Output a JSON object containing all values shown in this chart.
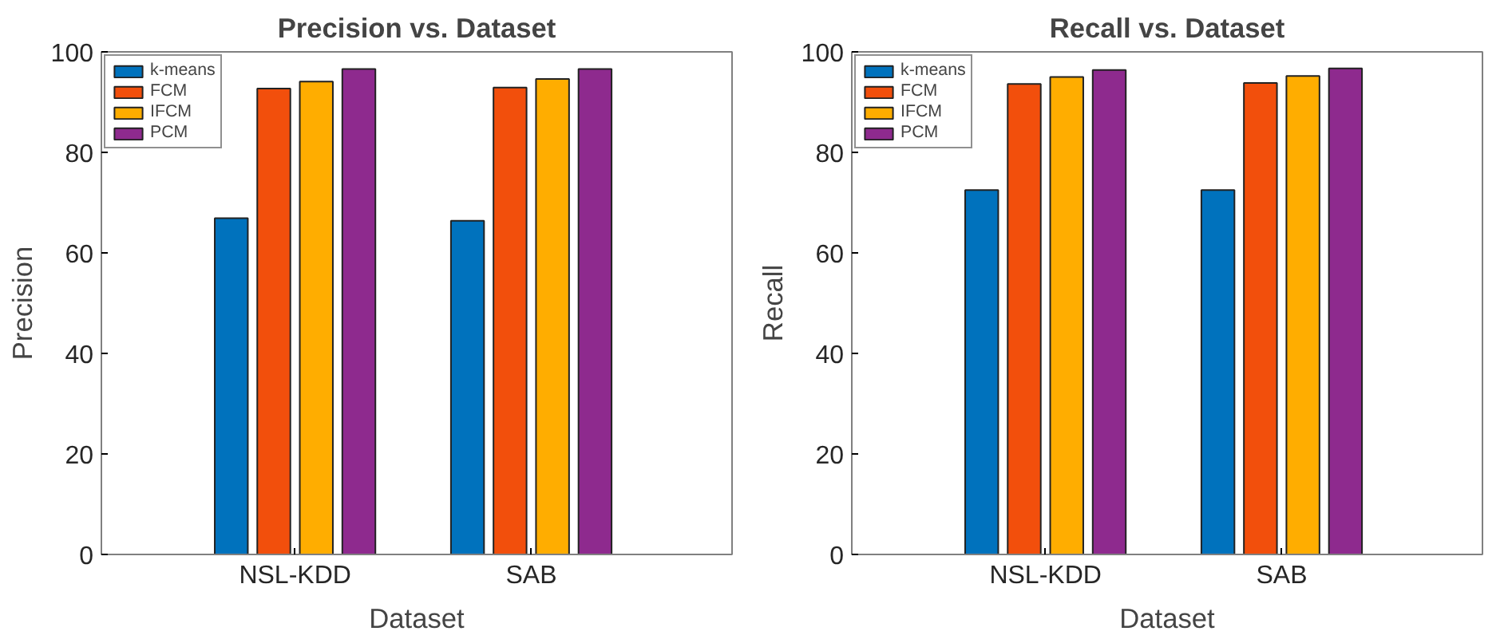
{
  "chart_data": [
    {
      "type": "bar",
      "title": "Precision vs. Dataset",
      "xlabel": "Dataset",
      "ylabel": "Precision",
      "categories": [
        "NSL-KDD",
        "SAB"
      ],
      "ylim": [
        0,
        100
      ],
      "yticks": [
        0,
        20,
        40,
        60,
        80,
        100
      ],
      "grid": false,
      "legend": "top left",
      "series": [
        {
          "name": "k-means",
          "color": "#0072bd",
          "values": [
            66.9,
            66.4
          ]
        },
        {
          "name": "FCM",
          "color": "#f24f0c",
          "values": [
            92.7,
            92.9
          ]
        },
        {
          "name": "IFCM",
          "color": "#ffad00",
          "values": [
            94.1,
            94.6
          ]
        },
        {
          "name": "PCM",
          "color": "#8e2a8e",
          "values": [
            96.6,
            96.6
          ]
        }
      ]
    },
    {
      "type": "bar",
      "title": "Recall vs. Dataset",
      "xlabel": "Dataset",
      "ylabel": "Recall",
      "categories": [
        "NSL-KDD",
        "SAB"
      ],
      "ylim": [
        0,
        100
      ],
      "yticks": [
        0,
        20,
        40,
        60,
        80,
        100
      ],
      "grid": false,
      "legend": "top left",
      "series": [
        {
          "name": "k-means",
          "color": "#0072bd",
          "values": [
            72.5,
            72.5
          ]
        },
        {
          "name": "FCM",
          "color": "#f24f0c",
          "values": [
            93.6,
            93.8
          ]
        },
        {
          "name": "IFCM",
          "color": "#ffad00",
          "values": [
            95.0,
            95.2
          ]
        },
        {
          "name": "PCM",
          "color": "#8e2a8e",
          "values": [
            96.4,
            96.7
          ]
        }
      ]
    }
  ]
}
